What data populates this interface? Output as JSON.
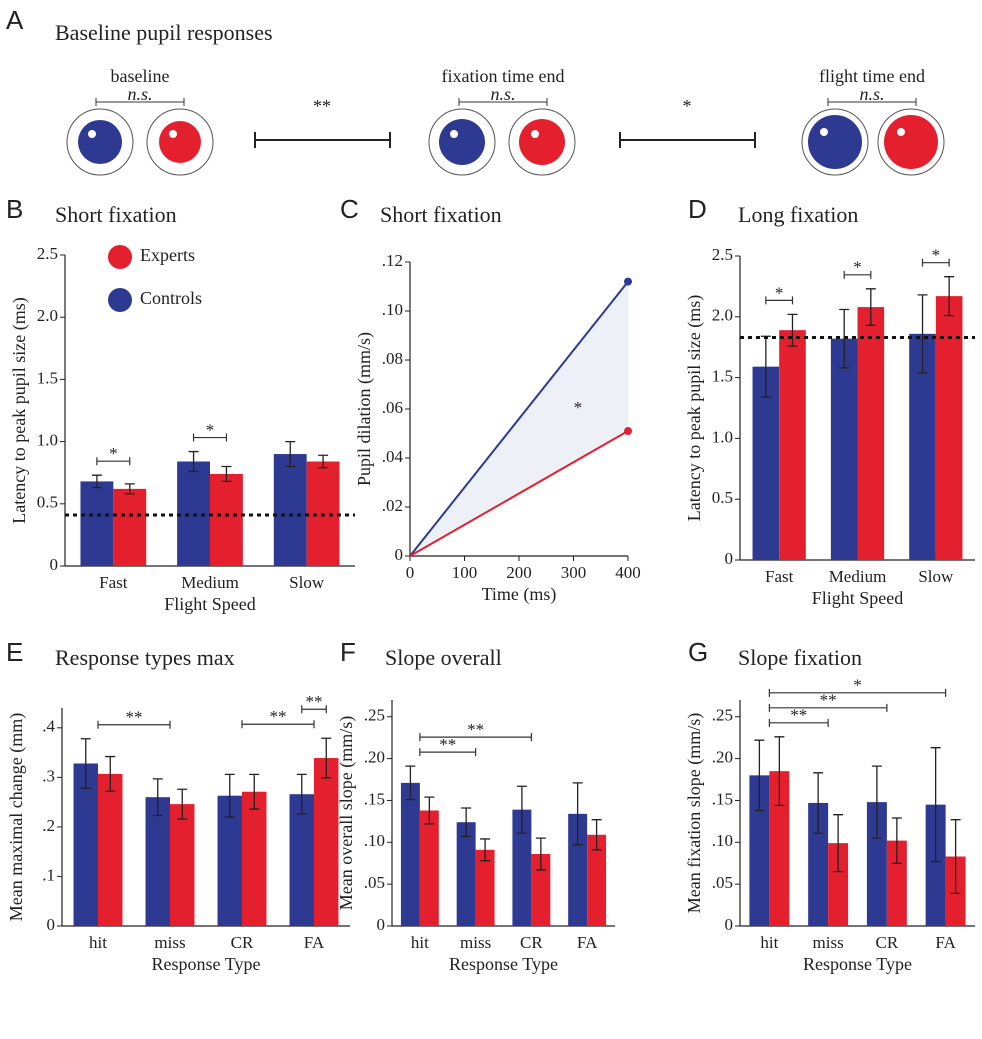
{
  "panel_a": {
    "letter": "A",
    "title": "Baseline pupil responses",
    "groups": [
      {
        "label": "baseline",
        "sig": "n.s."
      },
      {
        "label": "fixation time end",
        "sig": "n.s."
      },
      {
        "label": "flight time end",
        "sig": "n.s."
      }
    ],
    "between": [
      "**",
      "*"
    ]
  },
  "chart_data": [
    {
      "panel": "B",
      "type": "bar",
      "title": "Short fixation",
      "y_label": "Latency to peak pupil size (ms)",
      "x_label": "Flight Speed",
      "categories": [
        "Fast",
        "Medium",
        "Slow"
      ],
      "series": [
        {
          "name": "Controls",
          "color": "#2e3a92",
          "values": [
            0.68,
            0.84,
            0.9
          ],
          "errors": [
            0.05,
            0.08,
            0.1
          ]
        },
        {
          "name": "Experts",
          "color": "#e5202e",
          "values": [
            0.62,
            0.74,
            0.84
          ],
          "errors": [
            0.04,
            0.06,
            0.05
          ]
        }
      ],
      "ylim": [
        0,
        2.5
      ],
      "yticks": [
        0,
        0.5,
        {
          "value": 1,
          "label": "1.0"
        },
        1.5,
        {
          "value": 2,
          "label": "2.0"
        },
        2.5
      ],
      "reference_line": 0.41,
      "legend": "upper left",
      "brackets": [
        {
          "label": "*",
          "from": "Fast",
          "to": "Fast"
        },
        {
          "label": "*",
          "from": "Medium",
          "to": "Medium"
        }
      ]
    },
    {
      "panel": "C",
      "type": "line",
      "title": "Short fixation",
      "y_label": "Pupil dilation (mm/s)",
      "x_label": "Time (ms)",
      "x": [
        0,
        400
      ],
      "series": [
        {
          "color": "#2e3a92",
          "values": [
            0,
            0.112
          ]
        },
        {
          "color": "#e5202e",
          "values": [
            0,
            0.051
          ]
        }
      ],
      "xlim": [
        0,
        400
      ],
      "xticks": [
        0,
        100,
        200,
        300,
        400
      ],
      "ylim": [
        0,
        0.12
      ],
      "yticks": [
        0,
        {
          "value": 0.02,
          "label": ".02"
        },
        {
          "value": 0.04,
          "label": ".04"
        },
        {
          "value": 0.06,
          "label": ".06"
        },
        {
          "value": 0.08,
          "label": ".08"
        },
        {
          "value": 0.1,
          "label": ".10"
        },
        {
          "value": 0.12,
          "label": ".12"
        }
      ],
      "annotation": "*"
    },
    {
      "panel": "D",
      "type": "bar",
      "title": "Long fixation",
      "y_label": "Latency to peak pupil size (ms)",
      "x_label": "Flight Speed",
      "categories": [
        "Fast",
        "Medium",
        "Slow"
      ],
      "series": [
        {
          "color": "#2e3a92",
          "values": [
            1.59,
            1.82,
            1.86
          ],
          "errors": [
            0.25,
            0.24,
            0.32
          ]
        },
        {
          "color": "#e5202e",
          "values": [
            1.89,
            2.08,
            2.17
          ],
          "errors": [
            0.13,
            0.15,
            0.16
          ]
        }
      ],
      "ylim": [
        0,
        2.5
      ],
      "yticks": [
        0,
        0.5,
        {
          "value": 1,
          "label": "1.0"
        },
        1.5,
        {
          "value": 2,
          "label": "2.0"
        },
        2.5
      ],
      "reference_line": 1.83,
      "brackets": [
        {
          "label": "*",
          "from": "Fast",
          "to": "Fast"
        },
        {
          "label": "*",
          "from": "Medium",
          "to": "Medium"
        },
        {
          "label": "*",
          "from": "Slow",
          "to": "Slow"
        }
      ]
    },
    {
      "panel": "E",
      "type": "bar",
      "title": "Response types max",
      "y_label": "Mean maximal change (mm)",
      "x_label": "Response Type",
      "categories": [
        "hit",
        "miss",
        "CR",
        "FA"
      ],
      "series": [
        {
          "color": "#2e3a92",
          "values": [
            0.328,
            0.26,
            0.263,
            0.266
          ],
          "errors": [
            0.05,
            0.037,
            0.043,
            0.04
          ]
        },
        {
          "color": "#e5202e",
          "values": [
            0.307,
            0.246,
            0.271,
            0.339
          ],
          "errors": [
            0.035,
            0.03,
            0.035,
            0.04
          ]
        }
      ],
      "ylim": [
        0,
        0.44
      ],
      "yticks": [
        0,
        {
          "value": 0.1,
          "label": ".1"
        },
        {
          "value": 0.2,
          "label": ".2"
        },
        {
          "value": 0.3,
          "label": ".3"
        },
        {
          "value": 0.4,
          "label": ".4"
        }
      ],
      "brackets": [
        {
          "label": "**",
          "from": "hit",
          "to": "miss"
        },
        {
          "label": "**",
          "from": "CR",
          "to": "FA"
        },
        {
          "label": "**",
          "from": "FA",
          "to": "FA"
        }
      ]
    },
    {
      "panel": "F",
      "type": "bar",
      "title": "Slope overall",
      "y_label": "Mean overall slope (mm/s)",
      "x_label": "Response Type",
      "categories": [
        "hit",
        "miss",
        "CR",
        "FA"
      ],
      "series": [
        {
          "color": "#2e3a92",
          "values": [
            0.171,
            0.124,
            0.139,
            0.134
          ],
          "errors": [
            0.02,
            0.017,
            0.028,
            0.037
          ]
        },
        {
          "color": "#e5202e",
          "values": [
            0.138,
            0.091,
            0.086,
            0.109
          ],
          "errors": [
            0.016,
            0.013,
            0.019,
            0.018
          ]
        }
      ],
      "ylim": [
        0,
        0.27
      ],
      "yticks": [
        0,
        {
          "value": 0.05,
          "label": ".05"
        },
        {
          "value": 0.1,
          "label": ".10"
        },
        {
          "value": 0.15,
          "label": ".15"
        },
        {
          "value": 0.2,
          "label": ".20"
        },
        {
          "value": 0.25,
          "label": ".25"
        }
      ],
      "brackets": [
        {
          "label": "**",
          "from": "hit",
          "to": "miss"
        },
        {
          "label": "**",
          "from": "hit",
          "to": "CR"
        }
      ]
    },
    {
      "panel": "G",
      "type": "bar",
      "title": "Slope fixation",
      "y_label": "Mean fixation slope (mm/s)",
      "x_label": "Response Type",
      "categories": [
        "hit",
        "miss",
        "CR",
        "FA"
      ],
      "series": [
        {
          "color": "#2e3a92",
          "values": [
            0.18,
            0.147,
            0.148,
            0.145
          ],
          "errors": [
            0.042,
            0.036,
            0.043,
            0.068
          ]
        },
        {
          "color": "#e5202e",
          "values": [
            0.185,
            0.099,
            0.102,
            0.083
          ],
          "errors": [
            0.041,
            0.034,
            0.027,
            0.044
          ]
        }
      ],
      "ylim": [
        0,
        0.27
      ],
      "yticks": [
        0,
        {
          "value": 0.05,
          "label": ".05"
        },
        {
          "value": 0.1,
          "label": ".10"
        },
        {
          "value": 0.15,
          "label": ".15"
        },
        {
          "value": 0.2,
          "label": ".20"
        },
        {
          "value": 0.25,
          "label": ".25"
        }
      ],
      "brackets": [
        {
          "label": "**",
          "from": "hit",
          "to": "miss"
        },
        {
          "label": "**",
          "from": "hit",
          "to": "CR"
        },
        {
          "label": "*",
          "from": "hit",
          "to": "FA"
        }
      ]
    }
  ]
}
